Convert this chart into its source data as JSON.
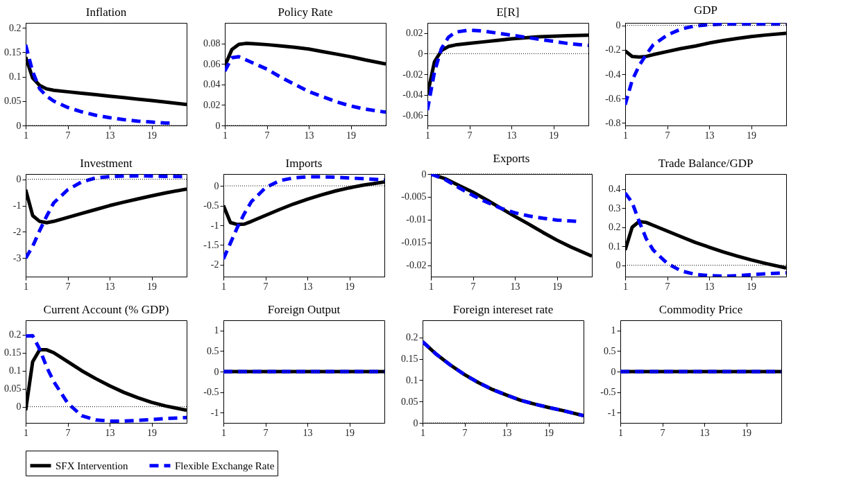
{
  "chart_data": [
    {
      "type": "line",
      "title": "Inflation",
      "xlim": [
        1,
        24
      ],
      "xticks": [
        1,
        7,
        13,
        19
      ],
      "ylim": [
        0,
        0.21
      ],
      "yticks": [
        0,
        0.05,
        0.1,
        0.15,
        0.2
      ],
      "grid": false,
      "legend": "bottom",
      "ref_lines": [
        {
          "axis": "y",
          "value": 0,
          "line_style": "dotted",
          "color": "#000000"
        }
      ],
      "series": [
        {
          "name": "SFX Intervention",
          "color": "#000000",
          "line_style": "solid",
          "x": [
            1,
            2,
            3,
            4,
            5,
            7,
            9,
            11,
            13,
            15,
            17,
            19,
            21,
            24
          ],
          "values": [
            0.14,
            0.097,
            0.082,
            0.075,
            0.072,
            0.069,
            0.066,
            0.063,
            0.06,
            0.057,
            0.054,
            0.051,
            0.048,
            0.043
          ]
        },
        {
          "name": "Flexible Exchange Rate",
          "color": "#0000ff",
          "line_style": "dashed",
          "x": [
            1,
            2,
            3,
            4,
            5,
            7,
            9,
            11,
            13,
            15,
            17,
            19,
            21,
            22
          ],
          "values": [
            0.165,
            0.11,
            0.075,
            0.06,
            0.05,
            0.037,
            0.028,
            0.021,
            0.016,
            0.012,
            0.009,
            0.007,
            0.005,
            0.005
          ]
        }
      ]
    },
    {
      "type": "line",
      "title": "Policy Rate",
      "xlim": [
        1,
        24
      ],
      "xticks": [
        1,
        7,
        13,
        19
      ],
      "ylim": [
        0,
        0.1
      ],
      "yticks": [
        0,
        0.02,
        0.04,
        0.06,
        0.08
      ],
      "grid": false,
      "ref_lines": [
        {
          "axis": "y",
          "value": 0,
          "line_style": "dotted",
          "color": "#000000"
        }
      ],
      "series": [
        {
          "color": "#000000",
          "line_style": "solid",
          "x": [
            1,
            2,
            3,
            4,
            5,
            7,
            9,
            11,
            13,
            15,
            17,
            19,
            21,
            24
          ],
          "values": [
            0.058,
            0.074,
            0.079,
            0.08,
            0.0798,
            0.0788,
            0.0775,
            0.0762,
            0.0745,
            0.072,
            0.0695,
            0.067,
            0.064,
            0.06
          ]
        },
        {
          "color": "#0000ff",
          "line_style": "dashed",
          "x": [
            1,
            2,
            3,
            4,
            5,
            7,
            9,
            11,
            13,
            15,
            17,
            19,
            21,
            24
          ],
          "values": [
            0.053,
            0.066,
            0.067,
            0.064,
            0.061,
            0.055,
            0.047,
            0.04,
            0.033,
            0.028,
            0.023,
            0.019,
            0.016,
            0.013
          ]
        }
      ]
    },
    {
      "type": "line",
      "title": "E[R]",
      "xlim": [
        1,
        24
      ],
      "xticks": [
        1,
        7,
        13,
        19
      ],
      "ylim": [
        -0.07,
        0.03
      ],
      "yticks": [
        -0.06,
        -0.04,
        -0.02,
        0,
        0.02
      ],
      "grid": false,
      "ref_lines": [
        {
          "axis": "y",
          "value": 0,
          "line_style": "dotted",
          "color": "#000000"
        }
      ],
      "series": [
        {
          "color": "#000000",
          "line_style": "solid",
          "x": [
            1,
            2,
            3,
            4,
            5,
            7,
            9,
            11,
            13,
            15,
            17,
            19,
            21,
            24
          ],
          "values": [
            -0.04,
            -0.008,
            0.003,
            0.007,
            0.0085,
            0.01,
            0.0115,
            0.013,
            0.0145,
            0.0155,
            0.0165,
            0.017,
            0.0175,
            0.018
          ]
        },
        {
          "color": "#0000ff",
          "line_style": "dashed",
          "x": [
            1,
            2,
            3,
            4,
            5,
            7,
            9,
            11,
            13,
            15,
            17,
            19,
            21,
            24
          ],
          "values": [
            -0.055,
            -0.018,
            0.005,
            0.016,
            0.021,
            0.023,
            0.022,
            0.02,
            0.018,
            0.016,
            0.014,
            0.012,
            0.01,
            0.008
          ]
        }
      ]
    },
    {
      "type": "line",
      "title": "GDP",
      "xlim": [
        1,
        24
      ],
      "xticks": [
        1,
        7,
        13,
        19
      ],
      "ylim": [
        -0.82,
        0.02
      ],
      "yticks": [
        -0.8,
        -0.6,
        -0.4,
        -0.2,
        0
      ],
      "grid": false,
      "ref_lines": [
        {
          "axis": "y",
          "value": 0,
          "line_style": "dotted",
          "color": "#000000"
        }
      ],
      "series": [
        {
          "color": "#000000",
          "line_style": "solid",
          "x": [
            1,
            2,
            3,
            4,
            5,
            7,
            9,
            11,
            13,
            15,
            17,
            19,
            21,
            24
          ],
          "values": [
            -0.21,
            -0.255,
            -0.26,
            -0.255,
            -0.24,
            -0.215,
            -0.19,
            -0.17,
            -0.145,
            -0.125,
            -0.108,
            -0.092,
            -0.08,
            -0.065
          ]
        },
        {
          "color": "#0000ff",
          "line_style": "dashed",
          "x": [
            1,
            2,
            3,
            4,
            5,
            7,
            9,
            11,
            13,
            15,
            17,
            19,
            21,
            24
          ],
          "values": [
            -0.65,
            -0.45,
            -0.33,
            -0.24,
            -0.16,
            -0.08,
            -0.03,
            -0.005,
            0.005,
            0.01,
            0.01,
            0.01,
            0.01,
            0.01
          ]
        }
      ]
    },
    {
      "type": "line",
      "title": "Investment",
      "xlim": [
        1,
        24
      ],
      "xticks": [
        1,
        7,
        13,
        19
      ],
      "ylim": [
        -3.7,
        0.2
      ],
      "yticks": [
        -3,
        -2,
        -1,
        0
      ],
      "grid": false,
      "ref_lines": [
        {
          "axis": "y",
          "value": 0,
          "line_style": "dotted",
          "color": "#000000"
        }
      ],
      "series": [
        {
          "color": "#000000",
          "line_style": "solid",
          "x": [
            1,
            2,
            3,
            4,
            5,
            7,
            9,
            11,
            13,
            15,
            17,
            19,
            21,
            24
          ],
          "values": [
            -0.4,
            -1.38,
            -1.6,
            -1.65,
            -1.6,
            -1.45,
            -1.3,
            -1.15,
            -1.0,
            -0.87,
            -0.75,
            -0.63,
            -0.52,
            -0.37
          ]
        },
        {
          "color": "#0000ff",
          "line_style": "dashed",
          "x": [
            1,
            2,
            3,
            4,
            5,
            7,
            9,
            11,
            13,
            15,
            17,
            19,
            21,
            24
          ],
          "values": [
            -3.0,
            -2.55,
            -1.95,
            -1.4,
            -0.9,
            -0.4,
            -0.1,
            0.05,
            0.1,
            0.12,
            0.13,
            0.12,
            0.11,
            0.1
          ]
        }
      ]
    },
    {
      "type": "line",
      "title": "Imports",
      "xlim": [
        1,
        24
      ],
      "xticks": [
        1,
        7,
        13,
        19
      ],
      "ylim": [
        -2.3,
        0.3
      ],
      "yticks": [
        -2,
        -1.5,
        -1,
        -0.5,
        0
      ],
      "grid": false,
      "ref_lines": [
        {
          "axis": "y",
          "value": 0,
          "line_style": "dotted",
          "color": "#000000"
        }
      ],
      "series": [
        {
          "color": "#000000",
          "line_style": "solid",
          "x": [
            1,
            2,
            3,
            4,
            5,
            7,
            9,
            11,
            13,
            15,
            17,
            19,
            21,
            24
          ],
          "values": [
            -0.5,
            -0.93,
            -0.98,
            -0.97,
            -0.9,
            -0.75,
            -0.6,
            -0.46,
            -0.34,
            -0.23,
            -0.13,
            -0.05,
            0.02,
            0.1
          ]
        },
        {
          "color": "#0000ff",
          "line_style": "dashed",
          "x": [
            1,
            2,
            3,
            4,
            5,
            7,
            9,
            11,
            13,
            15,
            17,
            19,
            21,
            24
          ],
          "values": [
            -1.85,
            -1.45,
            -1.05,
            -0.7,
            -0.4,
            -0.05,
            0.13,
            0.2,
            0.23,
            0.23,
            0.22,
            0.2,
            0.18,
            0.15
          ]
        }
      ]
    },
    {
      "type": "line",
      "title": "Exports",
      "xlim": [
        1,
        24
      ],
      "xticks": [
        1,
        7,
        13,
        19
      ],
      "ylim": [
        -0.0225,
        0
      ],
      "yticks": [
        -0.02,
        -0.015,
        -0.01,
        -0.005,
        0
      ],
      "grid": false,
      "ref_lines": [
        {
          "axis": "y",
          "value": 0,
          "line_style": "dotted",
          "color": "#000000"
        }
      ],
      "series": [
        {
          "color": "#000000",
          "line_style": "solid",
          "x": [
            1,
            3,
            5,
            7,
            9,
            11,
            13,
            15,
            17,
            19,
            21,
            24
          ],
          "values": [
            0,
            -0.001,
            -0.0025,
            -0.004,
            -0.0057,
            -0.0075,
            -0.0093,
            -0.011,
            -0.0128,
            -0.0145,
            -0.016,
            -0.018
          ]
        },
        {
          "color": "#0000ff",
          "line_style": "dashed",
          "x": [
            1,
            3,
            5,
            7,
            9,
            11,
            13,
            15,
            17,
            19,
            21,
            22
          ],
          "values": [
            0,
            -0.0012,
            -0.003,
            -0.0047,
            -0.0062,
            -0.0075,
            -0.0085,
            -0.0092,
            -0.0097,
            -0.0101,
            -0.0103,
            -0.0104
          ]
        }
      ]
    },
    {
      "type": "line",
      "title": "Trade Balance/GDP",
      "xlim": [
        1,
        24
      ],
      "xticks": [
        1,
        7,
        13,
        19
      ],
      "ylim": [
        -0.06,
        0.48
      ],
      "yticks": [
        0,
        0.1,
        0.2,
        0.3,
        0.4
      ],
      "grid": false,
      "ref_lines": [
        {
          "axis": "y",
          "value": 0,
          "line_style": "dotted",
          "color": "#000000"
        }
      ],
      "series": [
        {
          "color": "#000000",
          "line_style": "solid",
          "x": [
            1,
            2,
            3,
            4,
            5,
            7,
            9,
            11,
            13,
            15,
            17,
            19,
            21,
            24
          ],
          "values": [
            0.08,
            0.2,
            0.23,
            0.225,
            0.21,
            0.18,
            0.15,
            0.12,
            0.095,
            0.07,
            0.048,
            0.028,
            0.01,
            -0.015
          ]
        },
        {
          "color": "#0000ff",
          "line_style": "dashed",
          "x": [
            1,
            2,
            3,
            4,
            5,
            7,
            9,
            11,
            13,
            15,
            17,
            19,
            21,
            24
          ],
          "values": [
            0.38,
            0.33,
            0.23,
            0.14,
            0.08,
            0.01,
            -0.03,
            -0.048,
            -0.055,
            -0.058,
            -0.055,
            -0.05,
            -0.045,
            -0.04
          ]
        }
      ]
    },
    {
      "type": "line",
      "title": "Current Account (% GDP)",
      "xlim": [
        1,
        24
      ],
      "xticks": [
        1,
        7,
        13,
        19
      ],
      "ylim": [
        -0.045,
        0.24
      ],
      "yticks": [
        0,
        0.05,
        0.1,
        0.15,
        0.2
      ],
      "grid": false,
      "ref_lines": [
        {
          "axis": "y",
          "value": 0,
          "line_style": "dotted",
          "color": "#000000"
        }
      ],
      "series": [
        {
          "color": "#000000",
          "line_style": "solid",
          "x": [
            1,
            2,
            3,
            4,
            5,
            7,
            9,
            11,
            13,
            15,
            17,
            19,
            21,
            24
          ],
          "values": [
            -0.01,
            0.125,
            0.158,
            0.158,
            0.15,
            0.125,
            0.1,
            0.078,
            0.058,
            0.04,
            0.025,
            0.012,
            0.002,
            -0.01
          ]
        },
        {
          "color": "#0000ff",
          "line_style": "dashed",
          "x": [
            1,
            2,
            3,
            4,
            5,
            7,
            9,
            11,
            13,
            15,
            17,
            19,
            21,
            24
          ],
          "values": [
            0.196,
            0.197,
            0.16,
            0.11,
            0.07,
            0.01,
            -0.025,
            -0.037,
            -0.04,
            -0.04,
            -0.038,
            -0.036,
            -0.033,
            -0.03
          ]
        }
      ]
    },
    {
      "type": "line",
      "title": "Foreign Output",
      "xlim": [
        1,
        24
      ],
      "xticks": [
        1,
        7,
        13,
        19
      ],
      "ylim": [
        -1.25,
        1.25
      ],
      "yticks": [
        -1,
        -0.5,
        0,
        0.5,
        1
      ],
      "grid": false,
      "ref_lines": [
        {
          "axis": "y",
          "value": 0,
          "line_style": "dotted",
          "color": "#000000"
        }
      ],
      "series": [
        {
          "color": "#000000",
          "line_style": "solid",
          "x": [
            1,
            24
          ],
          "values": [
            0,
            0
          ]
        },
        {
          "color": "#0000ff",
          "line_style": "dashed",
          "x": [
            1,
            24
          ],
          "values": [
            0,
            0
          ]
        }
      ]
    },
    {
      "type": "line",
      "title": "Foreign intereset rate",
      "xlim": [
        1,
        24
      ],
      "xticks": [
        1,
        7,
        13,
        19
      ],
      "ylim": [
        0,
        0.24
      ],
      "yticks": [
        0,
        0.05,
        0.1,
        0.15,
        0.2
      ],
      "grid": false,
      "ref_lines": [
        {
          "axis": "y",
          "value": 0,
          "line_style": "dotted",
          "color": "#000000"
        }
      ],
      "series": [
        {
          "color": "#000000",
          "line_style": "solid",
          "x": [
            1,
            3,
            5,
            7,
            9,
            11,
            13,
            15,
            17,
            19,
            21,
            24
          ],
          "values": [
            0.19,
            0.16,
            0.135,
            0.113,
            0.094,
            0.078,
            0.065,
            0.053,
            0.044,
            0.036,
            0.029,
            0.017
          ]
        },
        {
          "color": "#0000ff",
          "line_style": "dashed",
          "x": [
            1,
            3,
            5,
            7,
            9,
            11,
            13,
            15,
            17,
            19,
            21,
            24
          ],
          "values": [
            0.19,
            0.16,
            0.135,
            0.113,
            0.094,
            0.078,
            0.065,
            0.053,
            0.044,
            0.036,
            0.029,
            0.017
          ]
        }
      ]
    },
    {
      "type": "line",
      "title": "Commodity Price",
      "xlim": [
        1,
        24
      ],
      "xticks": [
        1,
        7,
        13,
        19
      ],
      "ylim": [
        -1.25,
        1.25
      ],
      "yticks": [
        -1,
        -0.5,
        0,
        0.5,
        1
      ],
      "grid": false,
      "ref_lines": [
        {
          "axis": "y",
          "value": 0,
          "line_style": "dotted",
          "color": "#000000"
        }
      ],
      "series": [
        {
          "color": "#000000",
          "line_style": "solid",
          "x": [
            1,
            24
          ],
          "values": [
            0,
            0
          ]
        },
        {
          "color": "#0000ff",
          "line_style": "dashed",
          "x": [
            1,
            24
          ],
          "values": [
            0,
            0
          ]
        }
      ]
    }
  ]
}
